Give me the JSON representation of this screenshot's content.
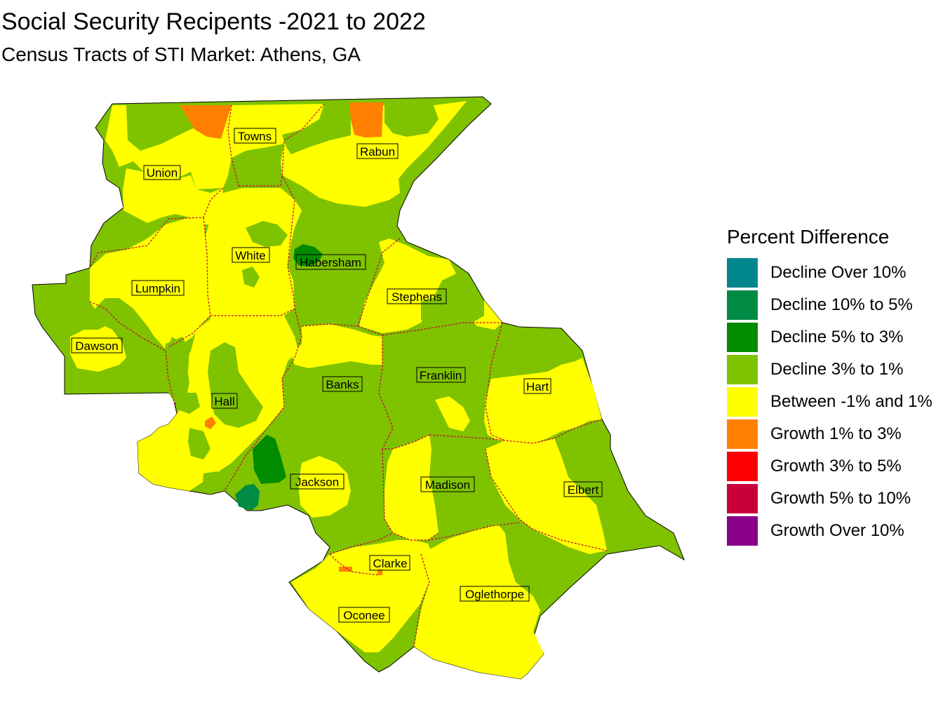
{
  "title": "Social Security Recipents -2021 to 2022",
  "subtitle": "Census Tracts of STI Market: Athens, GA",
  "legend": {
    "title": "Percent Difference",
    "items": [
      {
        "label": "Decline Over 10%",
        "color": "#00868B"
      },
      {
        "label": "Decline 10% to 5%",
        "color": "#008B45"
      },
      {
        "label": "Decline 5% to 3%",
        "color": "#008B00"
      },
      {
        "label": "Decline 3% to 1%",
        "color": "#7FC200"
      },
      {
        "label": "Between -1% and 1%",
        "color": "#FFFF00"
      },
      {
        "label": "Growth 1% to 3%",
        "color": "#FF7F00"
      },
      {
        "label": "Growth 3% to 5%",
        "color": "#FF0000"
      },
      {
        "label": "Growth 5% to 10%",
        "color": "#C8003C"
      },
      {
        "label": "Growth Over 10%",
        "color": "#880088"
      }
    ]
  },
  "counties": [
    "Towns",
    "Rabun",
    "Union",
    "White",
    "Habersham",
    "Lumpkin",
    "Stephens",
    "Dawson",
    "Banks",
    "Franklin",
    "Hart",
    "Hall",
    "Jackson",
    "Madison",
    "Elbert",
    "Clarke",
    "Oglethorpe",
    "Oconee"
  ]
}
